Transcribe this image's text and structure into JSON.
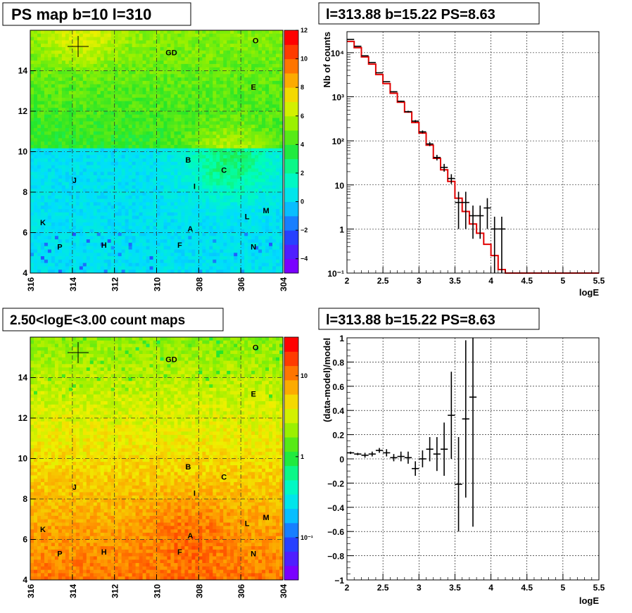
{
  "panels": {
    "ps_map": {
      "title": "PS map b=10 l=310",
      "x_ticks": [
        "316",
        "314",
        "312",
        "310",
        "308",
        "306",
        "304"
      ],
      "y_ticks": [
        "4",
        "6",
        "8",
        "10",
        "12",
        "14"
      ],
      "z_ticks": [
        "12",
        "10",
        "8",
        "6",
        "4",
        "2",
        "0",
        "−2",
        "−4"
      ],
      "regions": [
        "O",
        "GD",
        "E",
        "B",
        "C",
        "J",
        "I",
        "L",
        "M",
        "K",
        "A",
        "P",
        "H",
        "F",
        "N"
      ]
    },
    "count_map": {
      "title": "2.50<logE<3.00 count maps",
      "x_ticks": [
        "316",
        "314",
        "312",
        "310",
        "308",
        "306",
        "304"
      ],
      "y_ticks": [
        "4",
        "6",
        "8",
        "10",
        "12",
        "14"
      ],
      "z_ticks": [
        "10",
        "1",
        "10⁻¹"
      ],
      "regions": [
        "O",
        "GD",
        "E",
        "B",
        "C",
        "J",
        "I",
        "L",
        "M",
        "K",
        "A",
        "P",
        "H",
        "F",
        "N"
      ]
    },
    "spectrum": {
      "title": "l=313.88 b=15.22 PS=8.63"
    },
    "residual": {
      "title": "l=313.88 b=15.22 PS=8.63"
    }
  },
  "chart_data": [
    {
      "type": "heatmap",
      "title": "PS map b=10 l=310",
      "xlabel": "",
      "ylabel": "",
      "xlim": [
        316,
        304
      ],
      "ylim": [
        4,
        16
      ],
      "zlim": [
        -5,
        12
      ],
      "colors": [
        "#7a00ff",
        "#2233ff",
        "#00ffff",
        "#00ff66",
        "#8cff00",
        "#ffff00",
        "#ff8800",
        "#ff0000"
      ]
    },
    {
      "type": "heatmap",
      "title": "2.50<logE<3.00 count maps",
      "xlabel": "",
      "ylabel": "",
      "xlim": [
        316,
        304
      ],
      "ylim": [
        4,
        16
      ],
      "zscale": "log"
    },
    {
      "type": "line",
      "title": "l=313.88 b=15.22 PS=8.63",
      "xlabel": "logE",
      "ylabel": "Nb of counts",
      "xlim": [
        2,
        5.5
      ],
      "ylim": [
        0.1,
        30000
      ],
      "yscale": "log",
      "x_ticks": [
        "2",
        "2.5",
        "3",
        "3.5",
        "4",
        "4.5",
        "5",
        "5.5"
      ],
      "y_ticks": [
        "10⁻¹",
        "1",
        "10",
        "10²",
        "10³",
        "10⁴"
      ],
      "grid": true,
      "model_step": {
        "edges": [
          2.0,
          2.1,
          2.2,
          2.3,
          2.4,
          2.5,
          2.6,
          2.7,
          2.8,
          2.9,
          3.0,
          3.1,
          3.2,
          3.3,
          3.4,
          3.5,
          3.6,
          3.7,
          3.8,
          3.9,
          4.0,
          4.1,
          4.2,
          5.5
        ],
        "values": [
          18000,
          13000,
          8000,
          5500,
          3200,
          2000,
          1200,
          750,
          450,
          260,
          150,
          80,
          40,
          22,
          12,
          5,
          2.5,
          1.3,
          0.8,
          0.45,
          0.25,
          0.12,
          0.1
        ]
      },
      "data_points": {
        "x": [
          2.05,
          2.15,
          2.25,
          2.35,
          2.45,
          2.55,
          2.65,
          2.75,
          2.85,
          2.95,
          3.05,
          3.15,
          3.25,
          3.35,
          3.45,
          3.55,
          3.65,
          3.75,
          3.85,
          3.95,
          4.05,
          4.15
        ],
        "y": [
          20000,
          14000,
          8500,
          6000,
          3500,
          2200,
          1300,
          790,
          460,
          280,
          160,
          85,
          42,
          25,
          14,
          4,
          4,
          2,
          2,
          3,
          1,
          1
        ],
        "yerr_lo": [
          140,
          120,
          90,
          75,
          60,
          45,
          35,
          28,
          21,
          16,
          12,
          9,
          6,
          5,
          3.5,
          3,
          3,
          1.4,
          1.4,
          2,
          0.9,
          0.9
        ],
        "yerr_hi": [
          140,
          120,
          90,
          75,
          60,
          45,
          35,
          28,
          21,
          16,
          12,
          9,
          6,
          5,
          3.5,
          3,
          3,
          1.4,
          1.4,
          2,
          0.9,
          0.9
        ]
      }
    },
    {
      "type": "scatter",
      "title": "l=313.88 b=15.22 PS=8.63",
      "xlabel": "logE",
      "ylabel": "(data-model)/model",
      "xlim": [
        2,
        5.5
      ],
      "ylim": [
        -1,
        1
      ],
      "x_ticks": [
        "2",
        "2.5",
        "3",
        "3.5",
        "4",
        "4.5",
        "5",
        "5.5"
      ],
      "y_ticks": [
        "−1",
        "−0.8",
        "−0.6",
        "−0.4",
        "−0.2",
        "0",
        "0.2",
        "0.4",
        "0.6",
        "0.8",
        "1"
      ],
      "grid": true,
      "x": [
        2.05,
        2.15,
        2.25,
        2.35,
        2.45,
        2.55,
        2.65,
        2.75,
        2.85,
        2.95,
        3.05,
        3.15,
        3.25,
        3.35,
        3.45,
        3.55,
        3.65,
        3.75
      ],
      "y": [
        0.05,
        0.04,
        0.03,
        0.04,
        0.07,
        0.05,
        0.01,
        0.02,
        0.01,
        -0.08,
        0.0,
        0.08,
        0.04,
        0.08,
        0.36,
        -0.21,
        0.33,
        0.51
      ],
      "yerr": [
        0.01,
        0.01,
        0.02,
        0.02,
        0.02,
        0.03,
        0.03,
        0.04,
        0.05,
        0.06,
        0.07,
        0.1,
        0.14,
        0.22,
        0.36,
        0.39,
        0.65,
        1.07
      ]
    }
  ]
}
